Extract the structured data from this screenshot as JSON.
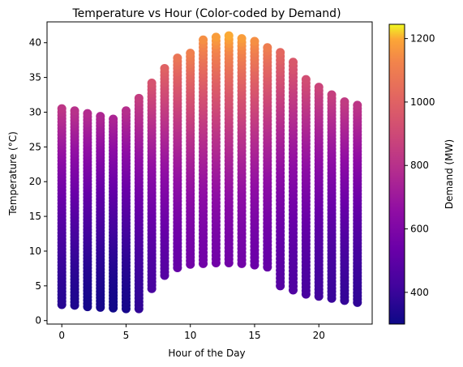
{
  "chart_data": {
    "type": "scatter",
    "title": "Temperature vs Hour (Color-coded by Demand)",
    "xlabel": "Hour of the Day",
    "ylabel": "Temperature (°C)",
    "xlim": [
      -1.15,
      24.15
    ],
    "ylim": [
      -0.5,
      43.0
    ],
    "x_ticks": [
      0,
      5,
      10,
      15,
      20
    ],
    "y_ticks": [
      0,
      5,
      10,
      15,
      20,
      25,
      30,
      35,
      40
    ],
    "grid": false,
    "colormap": "plasma",
    "colorbar": {
      "label": "Demand (MW)",
      "range": [
        300,
        1245
      ],
      "ticks": [
        400,
        600,
        800,
        1000,
        1200
      ]
    },
    "series": [
      {
        "hours": [
          0,
          1,
          2,
          3,
          4,
          5,
          6,
          7,
          8,
          9,
          10,
          11,
          12,
          13,
          14,
          15,
          16,
          17,
          18,
          19,
          20,
          21,
          22,
          23
        ],
        "temp_min": [
          2.3,
          2.2,
          2.0,
          1.9,
          1.8,
          1.7,
          1.7,
          4.6,
          6.5,
          7.6,
          8.1,
          8.2,
          8.3,
          8.3,
          8.2,
          8.0,
          7.7,
          5.0,
          4.4,
          3.8,
          3.5,
          3.2,
          2.9,
          2.6
        ],
        "temp_max": [
          30.5,
          30.2,
          29.8,
          29.4,
          29.0,
          30.2,
          32.0,
          34.2,
          36.3,
          37.8,
          38.5,
          40.4,
          40.8,
          41.0,
          40.6,
          40.2,
          39.3,
          38.6,
          37.2,
          34.7,
          33.6,
          32.5,
          31.5,
          31.0
        ],
        "demand_low": [
          360,
          340,
          320,
          320,
          310,
          320,
          380,
          440,
          480,
          520,
          560,
          560,
          560,
          560,
          560,
          540,
          520,
          480,
          460,
          440,
          420,
          400,
          390,
          380
        ],
        "demand_high": [
          820,
          800,
          780,
          760,
          750,
          790,
          850,
          940,
          1000,
          1070,
          1110,
          1150,
          1180,
          1200,
          1180,
          1150,
          1100,
          1020,
          960,
          920,
          880,
          860,
          840,
          820
        ]
      }
    ]
  }
}
